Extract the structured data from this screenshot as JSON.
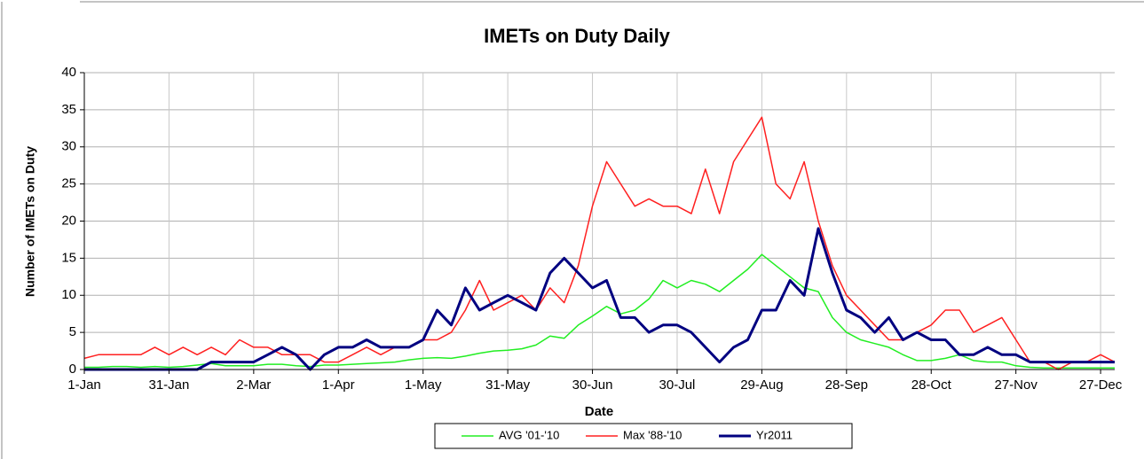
{
  "chart_data": {
    "type": "line",
    "title": "IMETs on Duty Daily",
    "xlabel": "Date",
    "ylabel": "Number of IMETs on Duty",
    "xlim": [
      1,
      366
    ],
    "ylim": [
      0,
      40
    ],
    "yticks": [
      0,
      5,
      10,
      15,
      20,
      25,
      30,
      35,
      40
    ],
    "xticks": [
      {
        "value": 1,
        "label": "1-Jan"
      },
      {
        "value": 31,
        "label": "31-Jan"
      },
      {
        "value": 61,
        "label": "2-Mar"
      },
      {
        "value": 91,
        "label": "1-Apr"
      },
      {
        "value": 121,
        "label": "1-May"
      },
      {
        "value": 151,
        "label": "31-May"
      },
      {
        "value": 181,
        "label": "30-Jun"
      },
      {
        "value": 211,
        "label": "30-Jul"
      },
      {
        "value": 241,
        "label": "29-Aug"
      },
      {
        "value": 271,
        "label": "28-Sep"
      },
      {
        "value": 301,
        "label": "28-Oct"
      },
      {
        "value": 331,
        "label": "27-Nov"
      },
      {
        "value": 361,
        "label": "27-Dec"
      }
    ],
    "grid": true,
    "legend": "bottom",
    "x": [
      1,
      6,
      11,
      16,
      21,
      26,
      31,
      36,
      41,
      46,
      51,
      56,
      61,
      66,
      71,
      76,
      81,
      86,
      91,
      96,
      101,
      106,
      111,
      116,
      121,
      126,
      131,
      136,
      141,
      146,
      151,
      156,
      161,
      166,
      171,
      176,
      181,
      186,
      191,
      196,
      201,
      206,
      211,
      216,
      221,
      226,
      231,
      236,
      241,
      246,
      251,
      256,
      261,
      266,
      271,
      276,
      281,
      286,
      291,
      296,
      301,
      306,
      311,
      316,
      321,
      326,
      331,
      336,
      341,
      346,
      351,
      356,
      361,
      366
    ],
    "series": [
      {
        "name": "AVG '01-'10",
        "color": "#22ee22",
        "width": 1.5,
        "values": [
          0.3,
          0.3,
          0.4,
          0.4,
          0.3,
          0.4,
          0.3,
          0.4,
          0.6,
          0.8,
          0.5,
          0.5,
          0.5,
          0.7,
          0.7,
          0.5,
          0.4,
          0.6,
          0.6,
          0.7,
          0.8,
          0.9,
          1,
          1.3,
          1.5,
          1.6,
          1.5,
          1.8,
          2.2,
          2.5,
          2.6,
          2.8,
          3.3,
          4.5,
          4.2,
          6,
          7.2,
          8.5,
          7.5,
          8,
          9.5,
          12,
          11,
          12,
          11.5,
          10.5,
          12,
          13.5,
          15.5,
          14,
          12.5,
          11,
          10.5,
          7,
          5,
          4,
          3.5,
          3,
          2,
          1.2,
          1.2,
          1.5,
          2,
          1.2,
          1,
          1,
          0.5,
          0.3,
          0.2,
          0.2,
          0.2,
          0.2,
          0.2,
          0.2
        ]
      },
      {
        "name": "Max '88-'10",
        "color": "#ff2020",
        "width": 1.5,
        "values": [
          1.5,
          2,
          2,
          2,
          2,
          3,
          2,
          3,
          2,
          3,
          2,
          4,
          3,
          3,
          2,
          2,
          2,
          1,
          1,
          2,
          3,
          2,
          3,
          3,
          4,
          4,
          5,
          8,
          12,
          8,
          9,
          10,
          8,
          11,
          9,
          14,
          22,
          28,
          25,
          22,
          23,
          22,
          22,
          21,
          27,
          21,
          28,
          31,
          34,
          25,
          23,
          28,
          20,
          14,
          10,
          8,
          6,
          4,
          4,
          5,
          6,
          8,
          8,
          5,
          6,
          7,
          4,
          1,
          1,
          0,
          1,
          1,
          2,
          1
        ]
      },
      {
        "name": "Yr2011",
        "color": "#000080",
        "width": 3,
        "values": [
          0,
          0,
          0,
          0,
          0,
          0,
          0,
          0,
          0,
          1,
          1,
          1,
          1,
          2,
          3,
          2,
          0,
          2,
          3,
          3,
          4,
          3,
          3,
          3,
          4,
          8,
          6,
          11,
          8,
          9,
          10,
          9,
          8,
          13,
          15,
          13,
          11,
          12,
          7,
          7,
          5,
          6,
          6,
          5,
          3,
          1,
          3,
          4,
          8,
          8,
          12,
          10,
          19,
          13,
          8,
          7,
          5,
          7,
          4,
          5,
          4,
          4,
          2,
          2,
          3,
          2,
          2,
          1,
          1,
          1,
          1,
          1,
          1,
          1
        ]
      }
    ]
  }
}
